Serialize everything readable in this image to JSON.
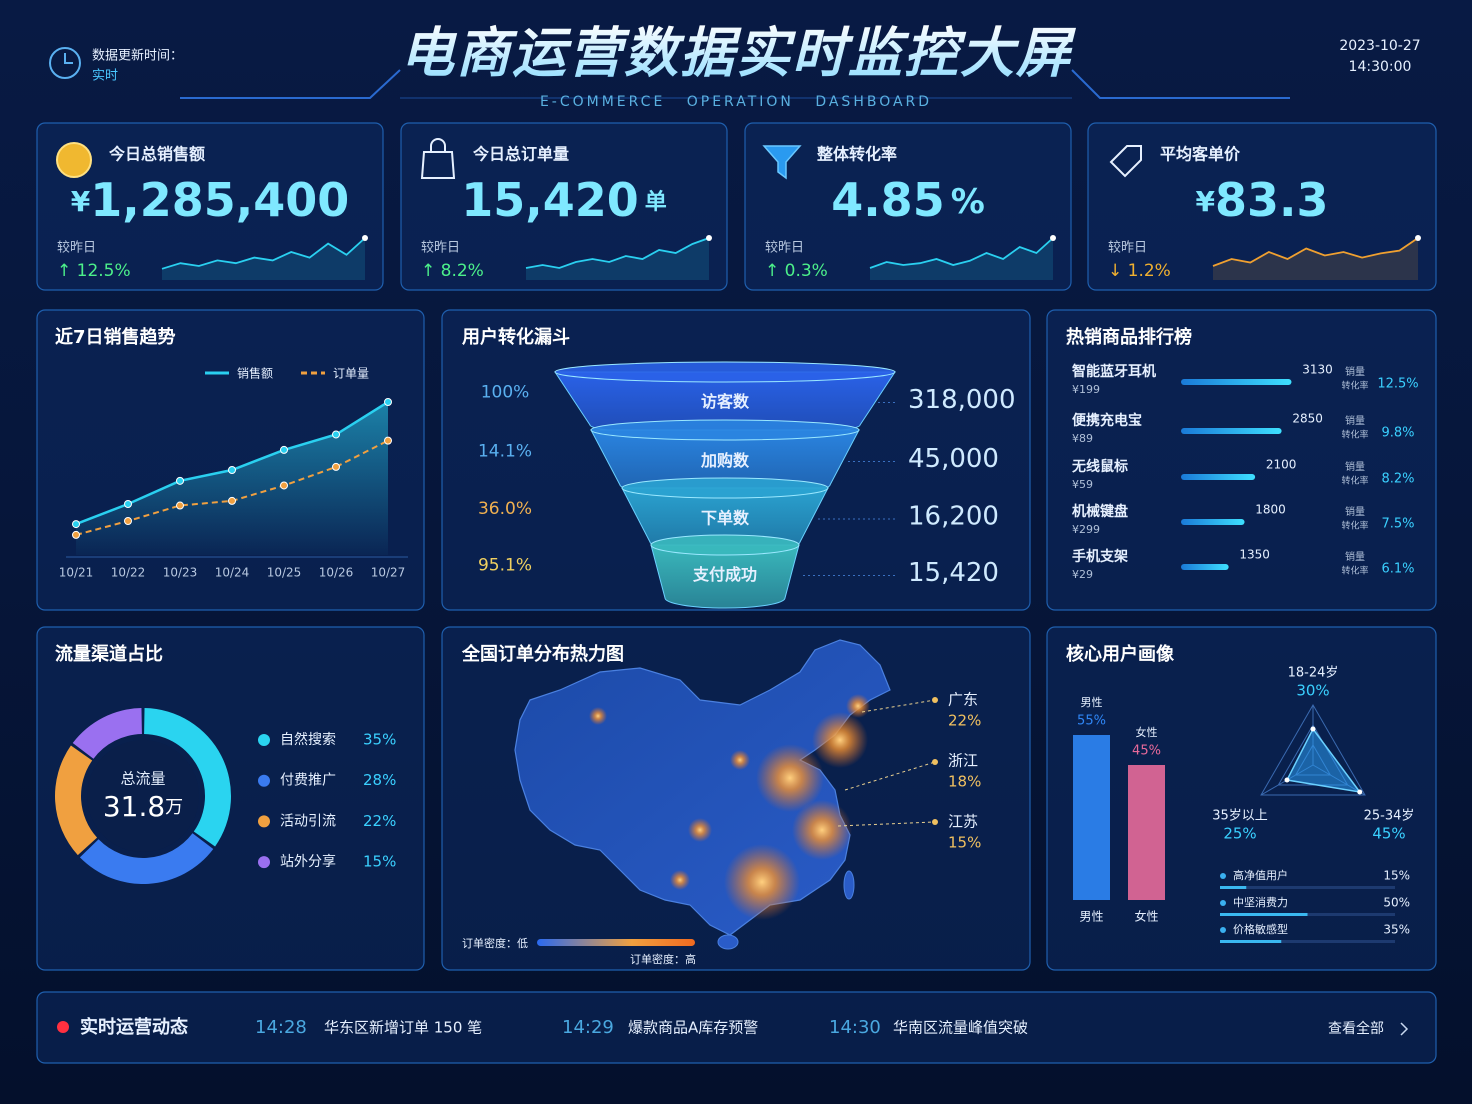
{
  "header": {
    "update_label": "数据更新时间：",
    "update_value": "实时",
    "title": "电商运营数据实时监控大屏",
    "subtitle": "E-COMMERCE OPERATION DASHBOARD",
    "date": "2023-10-27",
    "time": "14:30:00"
  },
  "kpis": [
    {
      "label": "今日总销售额",
      "prefix": "¥",
      "value": "1,285,400",
      "compare_label": "较昨日",
      "change": "↑ 12.5%",
      "change_color": "#4cf08a",
      "spark": [
        2,
        3,
        2.5,
        3.5,
        3,
        4,
        3.5,
        5,
        4,
        6.5,
        4.5,
        7.5
      ],
      "spark_color": "#2ad0f0"
    },
    {
      "label": "今日总订单量",
      "value": "15,420",
      "unit": "单",
      "compare_label": "较昨日",
      "change": "↑ 8.2%",
      "change_color": "#4cf08a",
      "spark": [
        2,
        2.5,
        2,
        3,
        3.5,
        3,
        4,
        3.5,
        5,
        4.5,
        6,
        7
      ],
      "spark_color": "#2ad0f0"
    },
    {
      "label": "整体转化率",
      "value": "4.85",
      "unit": "%",
      "compare_label": "较昨日",
      "change": "↑ 0.3%",
      "change_color": "#4cf08a",
      "spark": [
        2,
        3,
        2.5,
        2.8,
        3.5,
        2.5,
        3.2,
        4.5,
        3.5,
        5.5,
        4.5,
        7
      ],
      "spark_color": "#2ad0f0"
    },
    {
      "label": "平均客单价",
      "prefix": "¥",
      "value": "83.3",
      "compare_label": "较昨日",
      "change": "↓ 1.2%",
      "change_color": "#f0b030",
      "spark": [
        2,
        3,
        2.5,
        4,
        3,
        4.5,
        3.5,
        4,
        3.2,
        3.8,
        4.2,
        6
      ],
      "spark_color": "#f0a030"
    }
  ],
  "chart_data": [
    {
      "type": "line",
      "title": "近7日销售趋势",
      "categories": [
        "10/21",
        "10/22",
        "10/23",
        "10/24",
        "10/25",
        "10/26",
        "10/27"
      ],
      "series": [
        {
          "name": "销售额",
          "color": "#2ad0f0",
          "values": [
            20,
            33,
            48,
            55,
            68,
            78,
            99
          ]
        },
        {
          "name": "订单量",
          "color": "#f0a040",
          "style": "dashed",
          "values": [
            13,
            22,
            32,
            35,
            45,
            57,
            74
          ]
        }
      ],
      "ylim": [
        0,
        110
      ]
    },
    {
      "type": "funnel",
      "title": "用户转化漏斗",
      "categories": [
        "访客数",
        "加购数",
        "下单数",
        "支付成功"
      ],
      "values": [
        318000,
        45000,
        16200,
        15420
      ],
      "value_labels": [
        "318,000",
        "45,000",
        "16,200",
        "15,420"
      ],
      "rates": [
        "100%",
        "14.1%",
        "36.0%",
        "95.1%"
      ],
      "rate_colors": [
        "#5ab0f0",
        "#5ab0f0",
        "#f0b050",
        "#f0d060"
      ],
      "colors": [
        "#2a62e8",
        "#2a84e0",
        "#2aa2d0",
        "#3ab8bc"
      ]
    },
    {
      "type": "ranking",
      "title": "热销商品排行榜",
      "categories": [
        "智能蓝牙耳机",
        "便携充电宝",
        "无线鼠标",
        "机械键盘",
        "手机支架"
      ],
      "prices": [
        "¥199",
        "¥89",
        "¥59",
        "¥299",
        "¥29"
      ],
      "values": [
        3130,
        2850,
        2100,
        1800,
        1350
      ],
      "xlim": [
        0,
        3400
      ],
      "sales_label": "销量",
      "rate_label": "转化率",
      "rates": [
        "12.5%",
        "9.8%",
        "8.2%",
        "7.5%",
        "6.1%"
      ]
    },
    {
      "type": "donut",
      "title": "流量渠道占比",
      "center_label": "总流量",
      "center_value": "31.8",
      "center_unit": "万",
      "categories": [
        "自然搜索",
        "付费推广",
        "活动引流",
        "站外分享"
      ],
      "values": [
        35,
        28,
        22,
        15
      ],
      "value_labels": [
        "35%",
        "28%",
        "22%",
        "15%"
      ],
      "colors": [
        "#2ad4f0",
        "#3a7bf0",
        "#f0a040",
        "#9a70f0"
      ]
    },
    {
      "type": "bar",
      "title": "核心用户画像",
      "categories": [
        "男性",
        "女性"
      ],
      "values": [
        55,
        45
      ],
      "value_labels": [
        "55%",
        "45%"
      ],
      "colors": [
        "#2f86f6",
        "#e86a9a"
      ],
      "ylim": [
        0,
        60
      ]
    },
    {
      "type": "radar",
      "categories": [
        "18-24岁",
        "25-34岁",
        "35岁以上"
      ],
      "values": [
        30,
        45,
        25
      ],
      "value_labels": [
        "30%",
        "45%",
        "25%"
      ],
      "rlim": [
        0,
        50
      ],
      "color": "#2a9af0"
    },
    {
      "type": "progress",
      "categories": [
        "高净值用户",
        "中坚消费力",
        "价格敏感型"
      ],
      "values": [
        15,
        50,
        35
      ],
      "value_labels": [
        "15%",
        "50%",
        "35%"
      ],
      "xlim": [
        0,
        100
      ]
    }
  ],
  "map": {
    "title": "全国订单分布热力图",
    "regions": [
      {
        "name": "广东",
        "share": "22%"
      },
      {
        "name": "浙江",
        "share": "18%"
      },
      {
        "name": "江苏",
        "share": "15%"
      }
    ],
    "legend_low": "订单密度：低",
    "legend_high": "订单密度：高"
  },
  "ticker": {
    "title": "实时运营动态",
    "events": [
      {
        "time": "14:28",
        "text": "华东区新增订单 150 笔"
      },
      {
        "time": "14:29",
        "text": "爆款商品A库存预警"
      },
      {
        "time": "14:30",
        "text": "华南区流量峰值突破"
      }
    ],
    "link": "查看全部"
  }
}
